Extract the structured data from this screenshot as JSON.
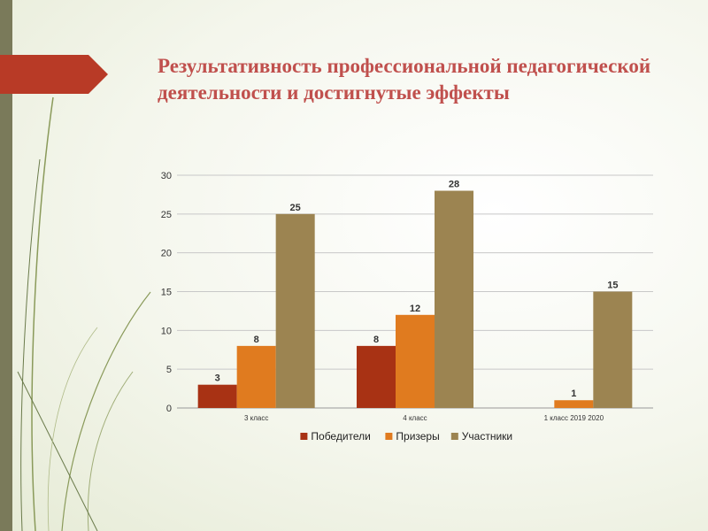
{
  "slide": {
    "title": "Результативность профессиональной педагогической деятельности и достигнутые эффекты"
  },
  "colors": {
    "accent": "#b83a26",
    "left_bar": "#7a7a5a",
    "title": "#c0504d"
  },
  "chart_data": {
    "type": "bar",
    "categories": [
      "3 класс",
      "4 класс",
      "1 класс 2019 2020"
    ],
    "series": [
      {
        "name": "Победители",
        "values": [
          3,
          8,
          null
        ],
        "color": "#a83214"
      },
      {
        "name": "Призеры",
        "values": [
          8,
          12,
          1
        ],
        "color": "#e07b1f"
      },
      {
        "name": "Участники",
        "values": [
          25,
          28,
          15
        ],
        "color": "#9c8451"
      }
    ],
    "ylim": [
      0,
      30
    ],
    "yticks": [
      0,
      5,
      10,
      15,
      20,
      25,
      30
    ],
    "grid": true,
    "legend_position": "bottom",
    "title": "",
    "xlabel": "",
    "ylabel": ""
  }
}
